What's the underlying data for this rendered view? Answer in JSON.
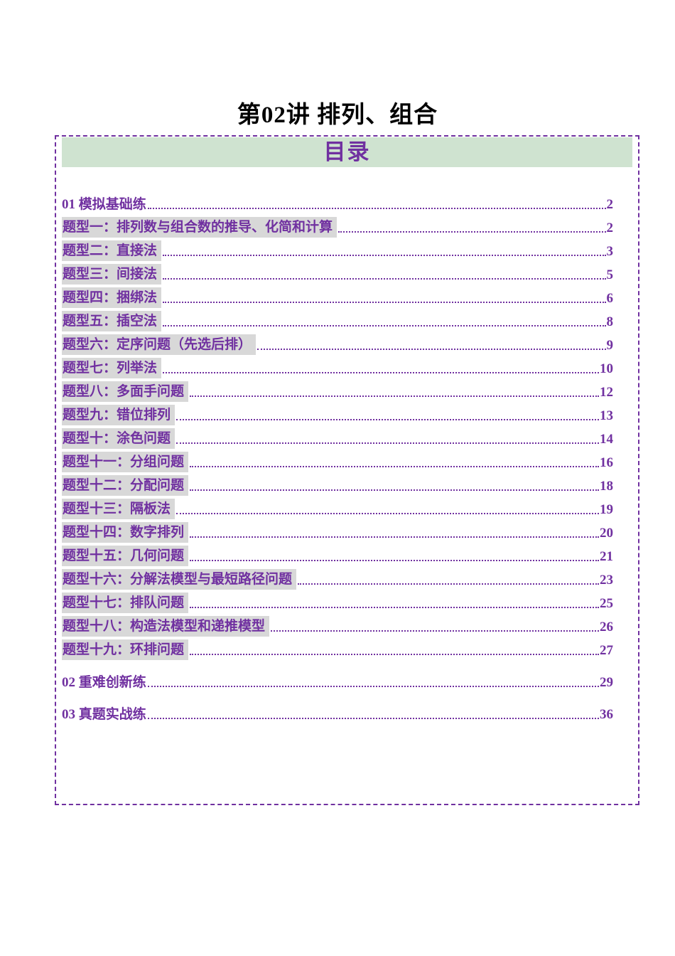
{
  "title": "第02讲 排列、组合",
  "toc": {
    "header": "目录",
    "entries": [
      {
        "label": "01 模拟基础练",
        "page": "2",
        "style": "section"
      },
      {
        "label": "题型一：排列数与组合数的推导、化简和计算",
        "page": "2",
        "style": "topic"
      },
      {
        "label": "题型二：直接法",
        "page": "3",
        "style": "topic"
      },
      {
        "label": "题型三：间接法",
        "page": "5",
        "style": "topic"
      },
      {
        "label": "题型四：捆绑法",
        "page": "6",
        "style": "topic"
      },
      {
        "label": "题型五：插空法",
        "page": "8",
        "style": "topic"
      },
      {
        "label": "题型六：定序问题（先选后排）",
        "page": "9",
        "style": "topic"
      },
      {
        "label": "题型七：列举法",
        "page": "10",
        "style": "topic"
      },
      {
        "label": "题型八：多面手问题",
        "page": "12",
        "style": "topic"
      },
      {
        "label": "题型九：错位排列",
        "page": "13",
        "style": "topic"
      },
      {
        "label": "题型十：涂色问题",
        "page": "14",
        "style": "topic"
      },
      {
        "label": "题型十一：分组问题",
        "page": "16",
        "style": "topic"
      },
      {
        "label": "题型十二：分配问题",
        "page": "18",
        "style": "topic"
      },
      {
        "label": "题型十三：隔板法",
        "page": "19",
        "style": "topic"
      },
      {
        "label": "题型十四：数字排列",
        "page": "20",
        "style": "topic"
      },
      {
        "label": "题型十五：几何问题",
        "page": "21",
        "style": "topic"
      },
      {
        "label": "题型十六：分解法模型与最短路径问题",
        "page": "23",
        "style": "topic"
      },
      {
        "label": "题型十七：排队问题",
        "page": "25",
        "style": "topic"
      },
      {
        "label": "题型十八：构造法模型和递推模型",
        "page": "26",
        "style": "topic"
      },
      {
        "label": "题型十九：环排问题",
        "page": "27",
        "style": "topic"
      },
      {
        "label": "02 重难创新练",
        "page": "29",
        "style": "section"
      },
      {
        "label": "03 真题实战练",
        "page": "36",
        "style": "section"
      }
    ]
  },
  "colors": {
    "accent_purple": "#7030a0",
    "banner_green": "#cfe3d0",
    "highlight_gray": "#d8d8d8",
    "title_black": "#000000"
  }
}
